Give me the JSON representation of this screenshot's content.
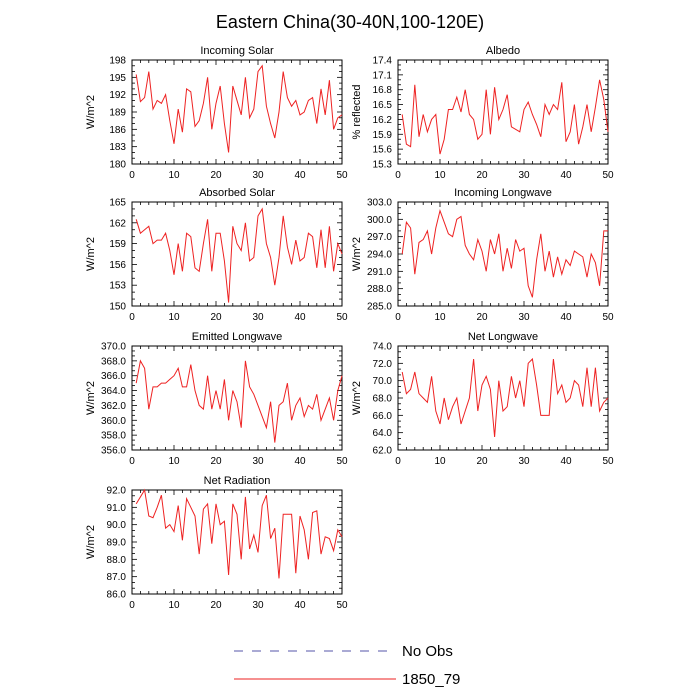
{
  "title": "Eastern China(30-40N,100-120E)",
  "legend": {
    "entries": [
      {
        "label": "No Obs",
        "color": "#5555aa",
        "style": "dashed"
      },
      {
        "label": "1850_79",
        "color": "#ee2222",
        "style": "solid"
      }
    ]
  },
  "colors": {
    "series": "#ee2222",
    "axis": "#000000"
  },
  "chart_data": [
    {
      "type": "line",
      "title": "Incoming Solar",
      "ylabel": "W/m^2",
      "xlabel": "",
      "xlim": [
        0,
        50
      ],
      "ylim": [
        180,
        198
      ],
      "xticks": [
        "0",
        "10",
        "20",
        "30",
        "40",
        "50"
      ],
      "yticks": [
        "180",
        "183",
        "186",
        "189",
        "192",
        "195",
        "198"
      ],
      "x_start": 1,
      "series": [
        {
          "name": "1850_79",
          "values": [
            195.5,
            190.8,
            191.5,
            196.0,
            189.5,
            191.0,
            190.5,
            192.0,
            187.5,
            183.5,
            189.5,
            185.5,
            193.0,
            192.5,
            186.5,
            187.5,
            190.5,
            195.0,
            186.0,
            190.5,
            193.5,
            187.0,
            182.0,
            193.5,
            191.0,
            188.5,
            195.0,
            188.0,
            189.5,
            196.0,
            197.0,
            190.0,
            187.0,
            184.5,
            189.0,
            196.0,
            191.5,
            190.0,
            191.0,
            188.5,
            189.0,
            191.0,
            191.5,
            187.0,
            193.0,
            188.5,
            194.5,
            186.0,
            188.0,
            188.5
          ]
        }
      ]
    },
    {
      "type": "line",
      "title": "Albedo",
      "ylabel": "% reflected",
      "xlabel": "",
      "xlim": [
        0,
        50
      ],
      "ylim": [
        15.3,
        17.4
      ],
      "xticks": [
        "0",
        "10",
        "20",
        "30",
        "40",
        "50"
      ],
      "yticks": [
        "15.3",
        "15.6",
        "15.9",
        "16.2",
        "16.5",
        "16.8",
        "17.1",
        "17.4"
      ],
      "x_start": 1,
      "series": [
        {
          "name": "1850_79",
          "values": [
            16.3,
            15.7,
            15.65,
            16.9,
            15.85,
            16.3,
            15.95,
            16.2,
            16.3,
            15.5,
            15.8,
            16.4,
            16.4,
            16.65,
            16.35,
            16.8,
            16.3,
            16.2,
            15.8,
            15.9,
            16.8,
            15.9,
            16.85,
            16.2,
            16.4,
            16.7,
            16.05,
            16.0,
            15.95,
            16.4,
            16.55,
            16.3,
            16.1,
            15.85,
            16.5,
            16.3,
            16.5,
            16.4,
            16.95,
            15.75,
            15.95,
            16.5,
            15.7,
            16.05,
            16.5,
            15.95,
            16.45,
            17.0,
            16.6,
            15.95
          ]
        }
      ]
    },
    {
      "type": "line",
      "title": "Absorbed Solar",
      "ylabel": "W/m^2",
      "xlabel": "",
      "xlim": [
        0,
        50
      ],
      "ylim": [
        150,
        165
      ],
      "xticks": [
        "0",
        "10",
        "20",
        "30",
        "40",
        "50"
      ],
      "yticks": [
        "150",
        "153",
        "156",
        "159",
        "162",
        "165"
      ],
      "x_start": 1,
      "series": [
        {
          "name": "1850_79",
          "values": [
            162.5,
            160.5,
            161.0,
            161.5,
            159.0,
            159.5,
            159.5,
            160.5,
            158.0,
            154.5,
            159.0,
            155.0,
            160.5,
            160.0,
            155.5,
            155.0,
            159.0,
            162.5,
            155.0,
            160.5,
            160.5,
            156.5,
            150.5,
            161.5,
            159.0,
            158.0,
            162.0,
            156.5,
            157.0,
            163.0,
            164.0,
            159.0,
            157.0,
            153.0,
            157.0,
            163.0,
            158.5,
            156.0,
            159.5,
            156.5,
            157.0,
            160.5,
            160.0,
            155.5,
            161.0,
            155.5,
            161.5,
            155.0,
            159.0,
            157.5
          ]
        }
      ]
    },
    {
      "type": "line",
      "title": "Incoming Longwave",
      "ylabel": "W/m^2",
      "xlabel": "",
      "xlim": [
        0,
        50
      ],
      "ylim": [
        285,
        303
      ],
      "xticks": [
        "0",
        "10",
        "20",
        "30",
        "40",
        "50"
      ],
      "yticks": [
        "285.0",
        "288.0",
        "291.0",
        "294.0",
        "297.0",
        "300.0",
        "303.0"
      ],
      "x_start": 1,
      "series": [
        {
          "name": "1850_79",
          "values": [
            294.0,
            299.5,
            298.5,
            290.5,
            296.0,
            296.5,
            298.0,
            294.0,
            298.5,
            301.5,
            299.5,
            297.5,
            297.0,
            300.0,
            300.5,
            295.5,
            294.0,
            293.0,
            296.5,
            294.5,
            291.0,
            296.5,
            294.0,
            297.5,
            291.0,
            295.0,
            291.5,
            296.5,
            294.5,
            295.0,
            288.5,
            286.5,
            293.0,
            297.5,
            291.0,
            294.5,
            290.0,
            293.5,
            290.5,
            293.0,
            292.0,
            294.5,
            294.0,
            293.5,
            290.0,
            294.0,
            292.5,
            288.5,
            298.0,
            298.0
          ]
        }
      ]
    },
    {
      "type": "line",
      "title": "Emitted Longwave",
      "ylabel": "W/m^2",
      "xlabel": "",
      "xlim": [
        0,
        50
      ],
      "ylim": [
        356,
        370
      ],
      "xticks": [
        "0",
        "10",
        "20",
        "30",
        "40",
        "50"
      ],
      "yticks": [
        "356.0",
        "358.0",
        "360.0",
        "362.0",
        "364.0",
        "366.0",
        "368.0",
        "370.0"
      ],
      "x_start": 1,
      "series": [
        {
          "name": "1850_79",
          "values": [
            365.0,
            368.0,
            367.0,
            361.5,
            364.5,
            364.5,
            365.0,
            365.0,
            365.5,
            366.0,
            367.0,
            364.5,
            364.5,
            367.5,
            364.0,
            362.0,
            361.5,
            366.0,
            361.5,
            364.0,
            361.5,
            365.5,
            360.0,
            364.0,
            362.5,
            359.0,
            368.0,
            364.5,
            363.5,
            362.0,
            360.5,
            359.0,
            362.5,
            357.0,
            362.0,
            362.5,
            365.0,
            360.0,
            362.0,
            363.0,
            360.5,
            362.0,
            361.5,
            363.5,
            360.0,
            361.5,
            363.0,
            360.0,
            364.0,
            366.0
          ]
        }
      ]
    },
    {
      "type": "line",
      "title": "Net Longwave",
      "ylabel": "W/m^2",
      "xlabel": "",
      "xlim": [
        0,
        50
      ],
      "ylim": [
        62,
        74
      ],
      "xticks": [
        "0",
        "10",
        "20",
        "30",
        "40",
        "50"
      ],
      "yticks": [
        "62.0",
        "64.0",
        "66.0",
        "68.0",
        "70.0",
        "72.0",
        "74.0"
      ],
      "x_start": 1,
      "series": [
        {
          "name": "1850_79",
          "values": [
            71.0,
            68.5,
            69.0,
            71.0,
            68.5,
            68.0,
            67.5,
            70.5,
            66.5,
            65.0,
            68.0,
            65.5,
            67.0,
            68.0,
            65.0,
            66.5,
            68.0,
            72.5,
            66.5,
            69.5,
            70.5,
            69.0,
            63.5,
            70.0,
            66.5,
            67.0,
            70.5,
            68.0,
            70.0,
            67.0,
            72.0,
            72.5,
            69.5,
            66.0,
            66.0,
            66.0,
            72.5,
            68.5,
            69.5,
            67.5,
            68.0,
            70.0,
            69.5,
            67.0,
            71.5,
            67.0,
            71.5,
            66.5,
            67.5,
            68.0
          ]
        }
      ]
    },
    {
      "type": "line",
      "title": "Net Radiation",
      "ylabel": "W/m^2",
      "xlabel": "",
      "xlim": [
        0,
        50
      ],
      "ylim": [
        86,
        92
      ],
      "xticks": [
        "0",
        "10",
        "20",
        "30",
        "40",
        "50"
      ],
      "yticks": [
        "86.0",
        "87.0",
        "88.0",
        "89.0",
        "90.0",
        "91.0",
        "92.0"
      ],
      "x_start": 1,
      "series": [
        {
          "name": "1850_79",
          "values": [
            91.2,
            91.6,
            92.0,
            90.5,
            90.4,
            91.0,
            91.7,
            89.8,
            90.0,
            89.6,
            91.1,
            89.1,
            91.5,
            91.0,
            90.5,
            88.3,
            90.9,
            91.2,
            88.9,
            91.2,
            90.0,
            90.2,
            87.1,
            91.2,
            90.6,
            88.0,
            91.6,
            88.6,
            89.4,
            88.4,
            91.1,
            91.7,
            89.2,
            89.8,
            86.9,
            90.6,
            90.6,
            90.6,
            87.2,
            90.5,
            89.7,
            88.0,
            90.7,
            90.8,
            88.3,
            89.3,
            89.2,
            88.5,
            89.7,
            89.3
          ]
        }
      ]
    }
  ]
}
